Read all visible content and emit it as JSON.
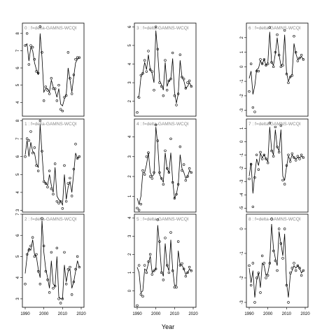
{
  "xlabel": "Year",
  "chart_data": [
    {
      "type": "line",
      "title": "0 : f=delta-GAMNS-WCQI",
      "x": [
        1990,
        1991,
        1992,
        1993,
        1994,
        1995,
        1996,
        1997,
        1998,
        1999,
        2000,
        2001,
        2002,
        2003,
        2004,
        2005,
        2006,
        2007,
        2008,
        2009,
        2010,
        2011,
        2012,
        2013,
        2014,
        2015,
        2016,
        2017,
        2018,
        2019
      ],
      "xlim": [
        1988.5,
        2021.5
      ],
      "ylim": [
        3.2,
        8.6
      ],
      "yticks": [
        4,
        5,
        6,
        7,
        8
      ],
      "series": [
        {
          "style": "points",
          "color": "#000000",
          "values": [
            7.3,
            8.0,
            6.2,
            7.3,
            7.2,
            6.5,
            5.8,
            5.7,
            8.4,
            6.9,
            4.1,
            4.9,
            4.7,
            4.5,
            5.4,
            4.8,
            4.8,
            4.1,
            5.0,
            3.6,
            3.5,
            4.3,
            4.4,
            6.9,
            5.4,
            4.5,
            5.6,
            6.5,
            6.6,
            6.6
          ]
        },
        {
          "style": "line",
          "color": "#000000",
          "values": [
            7.3,
            7.4,
            6.4,
            7.2,
            7.0,
            6.3,
            5.9,
            5.6,
            8.0,
            6.6,
            4.6,
            4.8,
            4.8,
            4.6,
            5.3,
            4.9,
            4.7,
            4.3,
            4.8,
            3.9,
            3.8,
            4.2,
            4.5,
            6.0,
            5.3,
            4.6,
            5.5,
            6.3,
            6.5,
            6.6
          ]
        }
      ]
    },
    {
      "type": "line",
      "title": "1 : f=delta-GAMNS-WCQI",
      "x": [
        1990,
        1991,
        1992,
        1993,
        1994,
        1995,
        1996,
        1997,
        1998,
        1999,
        2000,
        2001,
        2002,
        2003,
        2004,
        2005,
        2006,
        2007,
        2008,
        2009,
        2010,
        2011,
        2012,
        2013,
        2014,
        2015,
        2016,
        2017,
        2018,
        2019
      ],
      "xlim": [
        1988.5,
        2021.5
      ],
      "ylim": [
        2.9,
        8.1
      ],
      "yticks": [
        3,
        4,
        5,
        6,
        7,
        8
      ],
      "series": [
        {
          "style": "points",
          "color": "#000000",
          "values": [
            6.0,
            7.0,
            6.9,
            7.4,
            6.2,
            6.5,
            5.5,
            5.2,
            8.0,
            6.3,
            4.6,
            4.5,
            4.3,
            5.2,
            4.2,
            3.9,
            5.6,
            3.5,
            3.4,
            3.5,
            3.1,
            5.5,
            3.5,
            4.5,
            4.8,
            3.8,
            5.3,
            6.7,
            5.9,
            6.0
          ]
        },
        {
          "style": "line",
          "color": "#000000",
          "values": [
            6.1,
            6.9,
            6.0,
            6.8,
            6.3,
            6.2,
            5.6,
            5.4,
            7.8,
            6.2,
            4.7,
            4.5,
            4.4,
            5.0,
            4.4,
            4.0,
            5.4,
            3.8,
            3.6,
            3.5,
            3.3,
            5.0,
            3.6,
            4.3,
            4.6,
            4.0,
            5.1,
            6.2,
            5.9,
            6.0
          ]
        }
      ]
    },
    {
      "type": "line",
      "title": "2 : f=delta-GAMNS-WCQI",
      "x": [
        1990,
        1991,
        1992,
        1993,
        1994,
        1995,
        1996,
        1997,
        1998,
        1999,
        2000,
        2001,
        2002,
        2003,
        2004,
        2005,
        2006,
        2007,
        2008,
        2009,
        2010,
        2011,
        2012,
        2013,
        2014,
        2015,
        2016,
        2017,
        2018,
        2019
      ],
      "xlim": [
        1988.5,
        2021.5
      ],
      "xticks": [
        1990,
        2000,
        2010,
        2020
      ],
      "ylim": [
        2.6,
        7.0
      ],
      "yticks": [
        3,
        4,
        5,
        6,
        7
      ],
      "series": [
        {
          "style": "points",
          "color": "#000000",
          "values": [
            3.7,
            5.1,
            5.3,
            5.5,
            5.9,
            5.0,
            5.1,
            4.3,
            3.7,
            6.8,
            5.5,
            4.3,
            3.9,
            3.3,
            5.2,
            3.5,
            3.6,
            5.4,
            3.0,
            2.8,
            3.0,
            5.2,
            3.7,
            4.4,
            4.5,
            3.2,
            3.8,
            4.4,
            5.0,
            4.5
          ]
        },
        {
          "style": "line",
          "color": "#000000",
          "values": [
            4.2,
            5.0,
            5.4,
            5.3,
            5.8,
            5.1,
            5.0,
            4.4,
            4.0,
            6.7,
            5.2,
            4.4,
            4.0,
            3.5,
            4.8,
            3.7,
            3.6,
            5.0,
            3.1,
            3.0,
            3.0,
            4.6,
            3.8,
            4.3,
            4.4,
            3.5,
            3.8,
            4.3,
            4.8,
            4.5
          ]
        }
      ]
    },
    {
      "type": "line",
      "title": "3 : f=delta-GAMNS-WCQI",
      "x": [
        1990,
        1991,
        1992,
        1993,
        1994,
        1995,
        1996,
        1997,
        1998,
        1999,
        2000,
        2001,
        2002,
        2003,
        2004,
        2005,
        2006,
        2007,
        2008,
        2009,
        2010,
        2011,
        2012,
        2013,
        2014,
        2015,
        2016,
        2017,
        2018,
        2019
      ],
      "xlim": [
        1988.5,
        2021.5
      ],
      "ylim": [
        1.2,
        6.2
      ],
      "yticks": [
        2,
        3,
        4,
        5,
        6
      ],
      "series": [
        {
          "style": "points",
          "color": "#000000",
          "values": [
            1.4,
            2.2,
            3.4,
            3.5,
            4.2,
            3.6,
            4.7,
            3.7,
            3.6,
            2.6,
            6.0,
            4.8,
            3.0,
            2.8,
            2.3,
            4.2,
            2.6,
            3.1,
            3.2,
            4.6,
            2.3,
            1.8,
            2.4,
            4.5,
            3.3,
            3.2,
            2.7,
            3.0,
            3.1,
            2.8
          ]
        },
        {
          "style": "line",
          "color": "#000000",
          "values": [
            2.2,
            2.3,
            3.3,
            3.5,
            4.1,
            3.7,
            4.5,
            3.7,
            3.5,
            3.0,
            5.8,
            4.6,
            3.1,
            2.9,
            2.6,
            4.1,
            2.8,
            3.1,
            3.2,
            4.3,
            2.5,
            1.9,
            2.4,
            4.2,
            3.3,
            3.1,
            2.7,
            2.8,
            3.0,
            2.8
          ]
        }
      ]
    },
    {
      "type": "line",
      "title": "4 : f=delta-GAMNS-WCQI",
      "x": [
        1990,
        1991,
        1992,
        1993,
        1994,
        1995,
        1996,
        1997,
        1998,
        1999,
        2000,
        2001,
        2002,
        2003,
        2004,
        2005,
        2006,
        2007,
        2008,
        2009,
        2010,
        2011,
        2012,
        2013,
        2014,
        2015,
        2016,
        2017,
        2018,
        2019
      ],
      "xlim": [
        1988.5,
        2021.5
      ],
      "ylim": [
        0.2,
        4.9
      ],
      "yticks": [
        1,
        2,
        3,
        4
      ],
      "series": [
        {
          "style": "points",
          "color": "#000000",
          "values": [
            0.4,
            0.3,
            0.6,
            2.3,
            2.1,
            3.0,
            3.2,
            2.0,
            1.9,
            2.2,
            4.6,
            3.8,
            2.2,
            1.9,
            1.6,
            3.3,
            2.4,
            2.2,
            3.9,
            1.7,
            0.9,
            1.1,
            1.6,
            3.5,
            2.3,
            2.6,
            1.8,
            2.0,
            2.4,
            2.2
          ]
        },
        {
          "style": "line",
          "color": "#000000",
          "values": [
            0.9,
            0.6,
            1.0,
            2.2,
            2.2,
            2.6,
            3.2,
            2.2,
            2.0,
            2.1,
            4.5,
            3.6,
            2.1,
            1.9,
            1.7,
            3.2,
            2.4,
            2.2,
            3.2,
            1.8,
            0.9,
            1.1,
            1.6,
            3.1,
            2.4,
            2.2,
            1.9,
            2.0,
            2.3,
            2.2
          ]
        }
      ]
    },
    {
      "type": "line",
      "title": "5 : f=delta-GAMNS-WCQI",
      "x": [
        1990,
        1991,
        1992,
        1993,
        1994,
        1995,
        1996,
        1997,
        1998,
        1999,
        2000,
        2001,
        2002,
        2003,
        2004,
        2005,
        2006,
        2007,
        2008,
        2009,
        2010,
        2011,
        2012,
        2013,
        2014,
        2015,
        2016,
        2017,
        2018,
        2019
      ],
      "xlim": [
        1988.5,
        2021.5
      ],
      "xticks": [
        1990,
        2000,
        2010,
        2020
      ],
      "ylim": [
        -0.9,
        4.2
      ],
      "yticks": [
        0,
        1,
        2,
        3,
        4
      ],
      "series": [
        {
          "style": "points",
          "color": "#000000",
          "values": [
            -0.8,
            1.4,
            -0.2,
            -0.3,
            1.4,
            1.0,
            1.6,
            2.0,
            0.9,
            1.1,
            1.2,
            3.9,
            2.7,
            1.0,
            0.6,
            2.9,
            1.4,
            1.0,
            3.2,
            1.1,
            0.2,
            0.2,
            2.7,
            1.4,
            1.5,
            1.2,
            0.8,
            1.0,
            1.3,
            1.1
          ]
        },
        {
          "style": "line",
          "color": "#000000",
          "values": [
            1.3,
            1.0,
            -0.1,
            0.0,
            1.2,
            1.1,
            1.5,
            1.9,
            1.0,
            1.1,
            1.2,
            3.6,
            2.5,
            1.1,
            0.8,
            2.6,
            1.4,
            1.1,
            2.8,
            1.2,
            0.3,
            0.3,
            2.2,
            1.4,
            1.4,
            1.2,
            0.9,
            1.0,
            1.2,
            1.1
          ]
        }
      ]
    },
    {
      "type": "line",
      "title": "6 : f=delta-GAMNS-WCQI",
      "x": [
        1990,
        1991,
        1992,
        1993,
        1994,
        1995,
        1996,
        1997,
        1998,
        1999,
        2000,
        2001,
        2002,
        2003,
        2004,
        2005,
        2006,
        2007,
        2008,
        2009,
        2010,
        2011,
        2012,
        2013,
        2014,
        2015,
        2016,
        2017,
        2018,
        2019
      ],
      "xlim": [
        1988.5,
        2021.5
      ],
      "ylim": [
        -3.4,
        3.0
      ],
      "yticks": [
        -3,
        -2,
        -1,
        0,
        1,
        2
      ],
      "series": [
        {
          "style": "points",
          "color": "#000000",
          "values": [
            -1.7,
            0.2,
            -2.8,
            -3.1,
            -0.3,
            -0.3,
            0.5,
            0.2,
            0.5,
            0.1,
            0.2,
            2.7,
            0.3,
            0.0,
            1.0,
            2.2,
            0.8,
            0.0,
            0.1,
            2.5,
            -0.5,
            -1.1,
            -0.7,
            -0.6,
            2.1,
            1.0,
            0.4,
            0.6,
            0.8,
            0.5
          ]
        },
        {
          "style": "line",
          "color": "#000000",
          "values": [
            -0.8,
            -0.3,
            -1.9,
            -1.3,
            -0.2,
            -0.1,
            0.4,
            0.2,
            0.5,
            0.1,
            0.3,
            2.4,
            0.3,
            0.1,
            0.9,
            2.0,
            0.8,
            0.1,
            0.2,
            2.2,
            -0.4,
            -1.0,
            -0.7,
            -0.5,
            1.6,
            0.9,
            0.5,
            0.6,
            0.7,
            0.5
          ]
        }
      ]
    },
    {
      "type": "line",
      "title": "7 : f=delta-GAMNS-WCQI",
      "x": [
        1990,
        1991,
        1992,
        1993,
        1994,
        1995,
        1996,
        1997,
        1998,
        1999,
        2000,
        2001,
        2002,
        2003,
        2004,
        2005,
        2006,
        2007,
        2008,
        2009,
        2010,
        2011,
        2012,
        2013,
        2014,
        2015,
        2016,
        2017,
        2018,
        2019
      ],
      "xlim": [
        1988.5,
        2021.5
      ],
      "ylim": [
        -5.3,
        1.7
      ],
      "yticks": [
        -5,
        -4,
        -3,
        -2,
        -1,
        0,
        1
      ],
      "series": [
        {
          "style": "points",
          "color": "#000000",
          "values": [
            -2.8,
            -1.7,
            -4.9,
            -2.7,
            -1.0,
            -2.1,
            -0.8,
            -1.3,
            -1.0,
            -1.3,
            -1.6,
            1.4,
            -0.7,
            -1.1,
            1.1,
            -0.4,
            -0.8,
            1.2,
            -2.9,
            -3.2,
            -1.8,
            -1.0,
            -1.5,
            -0.9,
            -1.2,
            -1.4,
            -1.1,
            -1.3,
            -1.0,
            -1.2
          ]
        },
        {
          "style": "line",
          "color": "#000000",
          "values": [
            -2.6,
            -1.6,
            -3.9,
            -2.4,
            -1.3,
            -1.8,
            -0.9,
            -1.2,
            -1.0,
            -1.3,
            -1.5,
            1.1,
            -0.6,
            -1.0,
            0.9,
            -0.4,
            -0.7,
            0.9,
            -2.6,
            -2.9,
            -1.9,
            -1.1,
            -1.4,
            -1.0,
            -1.2,
            -1.3,
            -1.2,
            -1.2,
            -1.1,
            -1.2
          ]
        }
      ]
    },
    {
      "type": "line",
      "title": "8 : f=delta-GAMNS-WCQI",
      "x": [
        1990,
        1991,
        1992,
        1993,
        1994,
        1995,
        1996,
        1997,
        1998,
        1999,
        2000,
        2001,
        2002,
        2003,
        2004,
        2005,
        2006,
        2007,
        2008,
        2009,
        2010,
        2011,
        2012,
        2013,
        2014,
        2015,
        2016,
        2017,
        2018,
        2019
      ],
      "xlim": [
        1988.5,
        2021.5
      ],
      "xticks": [
        1990,
        2000,
        2010,
        2020
      ],
      "ylim": [
        -3.2,
        0.6
      ],
      "yticks": [
        -3,
        -2,
        -1,
        0
      ],
      "series": [
        {
          "style": "points",
          "color": "#000000",
          "values": [
            -1.5,
            -2.3,
            -1.4,
            -3.0,
            -2.0,
            -1.8,
            -2.6,
            -1.1,
            -1.4,
            -2.0,
            -1.9,
            -1.4,
            0.4,
            -0.9,
            -1.3,
            -1.7,
            0.0,
            -0.6,
            -1.2,
            0.0,
            -2.3,
            -3.0,
            -1.8,
            -1.6,
            -1.4,
            -1.7,
            -1.5,
            -1.6,
            -1.9,
            -1.7
          ]
        },
        {
          "style": "line",
          "color": "#000000",
          "values": [
            -1.6,
            -2.2,
            -1.7,
            -2.8,
            -2.1,
            -1.8,
            -2.4,
            -1.4,
            -1.5,
            -1.9,
            -1.8,
            -1.4,
            0.2,
            -0.8,
            -1.2,
            -1.5,
            -0.1,
            -0.6,
            -1.1,
            -0.2,
            -2.2,
            -2.8,
            -1.9,
            -1.7,
            -1.5,
            -1.6,
            -1.5,
            -1.6,
            -1.8,
            -1.7
          ]
        }
      ]
    }
  ]
}
